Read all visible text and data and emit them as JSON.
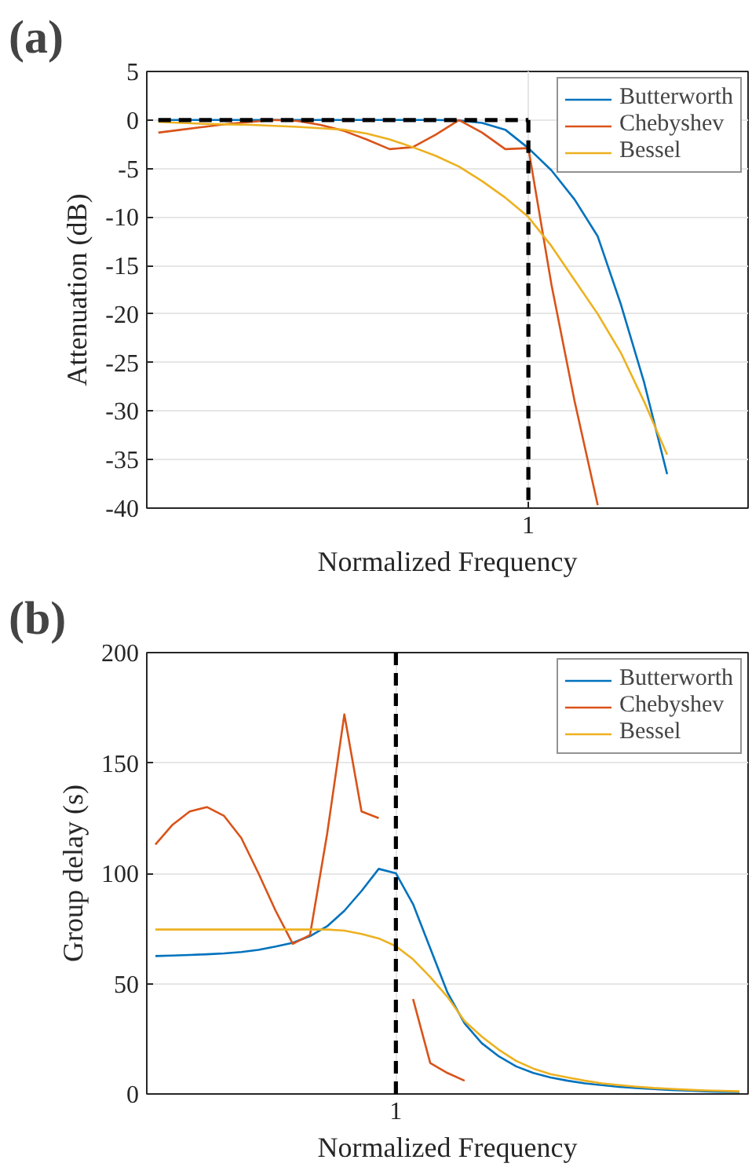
{
  "chart_data": [
    {
      "type": "line",
      "title": "(a)",
      "xlabel": "Normalized Frequency",
      "ylabel": "Attenuation (dB)",
      "categories": [
        null,
        null,
        null,
        null,
        null,
        null,
        null,
        null,
        null,
        null,
        null,
        null,
        null,
        null,
        null,
        null,
        "1",
        null,
        null,
        null,
        null,
        null,
        null,
        null,
        null,
        null
      ],
      "ylim": [
        -40,
        5
      ],
      "yticks": [
        -40,
        -35,
        -30,
        -25,
        -20,
        -15,
        -10,
        -5,
        0,
        5
      ],
      "grid": true,
      "legend": "top right",
      "series": [
        {
          "name": "Butterworth",
          "color": "#0072bd",
          "values": [
            0,
            0,
            0,
            0,
            0,
            0,
            0,
            0,
            0,
            0,
            0,
            0,
            0,
            -0.05,
            -0.3,
            -1.0,
            -2.9,
            -5.2,
            -8.2,
            -12,
            -19,
            -27,
            -36.5,
            null,
            null,
            null
          ]
        },
        {
          "name": "Chebyshev",
          "color": "#d95319",
          "values": [
            -1.3,
            -1.0,
            -0.7,
            -0.4,
            -0.2,
            0,
            -0.1,
            -0.5,
            -1.1,
            -2.0,
            -3.0,
            -2.8,
            -1.5,
            0,
            -1.3,
            -3.0,
            -2.9,
            -17,
            -29,
            -39.7,
            null,
            null,
            null,
            null,
            null,
            null
          ]
        },
        {
          "name": "Bessel",
          "color": "#edb120",
          "values": [
            -0.2,
            -0.3,
            -0.4,
            -0.45,
            -0.5,
            -0.6,
            -0.7,
            -0.85,
            -1.0,
            -1.4,
            -2.0,
            -2.8,
            -3.7,
            -4.8,
            -6.3,
            -8,
            -10,
            -13,
            -16.5,
            -20,
            -24,
            -29,
            -34.5,
            null,
            null,
            null
          ]
        },
        {
          "color": "#000000",
          "line_style": "dashed",
          "values": [
            0,
            0,
            0,
            0,
            0,
            0,
            0,
            0,
            0,
            0,
            0,
            0,
            0,
            0,
            0,
            0,
            0,
            null,
            null,
            null,
            null,
            null,
            null,
            null,
            null,
            null
          ]
        },
        {
          "color": "#000000",
          "line_style": "dashed",
          "x": [
            "1",
            "1"
          ],
          "values": [
            0,
            -40
          ]
        }
      ]
    },
    {
      "type": "line",
      "title": "(b)",
      "xlabel": "Normalized Frequency",
      "ylabel": "Group delay (s)",
      "categories": [
        null,
        null,
        null,
        null,
        null,
        null,
        null,
        null,
        null,
        null,
        null,
        null,
        null,
        null,
        "1",
        null,
        null,
        null,
        null,
        null,
        null,
        null,
        null,
        null,
        null,
        null,
        null,
        null,
        null,
        null,
        null,
        null,
        null,
        null,
        null
      ],
      "ylim": [
        0,
        200
      ],
      "yticks": [
        0,
        50,
        100,
        150,
        200
      ],
      "grid": true,
      "legend": "top right",
      "ref_lines": [
        {
          "axis": "x",
          "value": "1",
          "color": "#000000",
          "line_style": "dashed"
        }
      ],
      "series": [
        {
          "name": "Butterworth",
          "color": "#0072bd",
          "values": [
            62.5,
            62.7,
            63,
            63.3,
            63.7,
            64.3,
            65.3,
            66.8,
            68.5,
            71.5,
            76,
            83,
            92,
            102,
            100,
            86,
            66,
            46,
            32,
            23,
            17,
            12.5,
            9.5,
            7.5,
            6,
            4.8,
            4,
            3.2,
            2.7,
            2.2,
            1.8,
            1.5,
            1.2,
            1.0,
            0.9
          ]
        },
        {
          "name": "Chebyshev",
          "color": "#d95319",
          "values": [
            113,
            122,
            128,
            130,
            126,
            116,
            100,
            83,
            68,
            72,
            118,
            172,
            128,
            125,
            null,
            43,
            14,
            9.5,
            6,
            null,
            null,
            null,
            null,
            null,
            null,
            null,
            null,
            null,
            null,
            null,
            null,
            null,
            null,
            null,
            null
          ]
        },
        {
          "name": "Bessel",
          "color": "#edb120",
          "values": [
            74.5,
            74.5,
            74.5,
            74.5,
            74.5,
            74.5,
            74.5,
            74.5,
            74.5,
            74.5,
            74.5,
            74,
            72.5,
            70.5,
            67,
            61,
            53,
            44,
            33,
            26,
            20,
            15,
            11.5,
            9,
            7.5,
            6,
            4.8,
            4,
            3.3,
            2.7,
            2.3,
            1.9,
            1.6,
            1.4,
            1.2
          ]
        }
      ]
    }
  ]
}
